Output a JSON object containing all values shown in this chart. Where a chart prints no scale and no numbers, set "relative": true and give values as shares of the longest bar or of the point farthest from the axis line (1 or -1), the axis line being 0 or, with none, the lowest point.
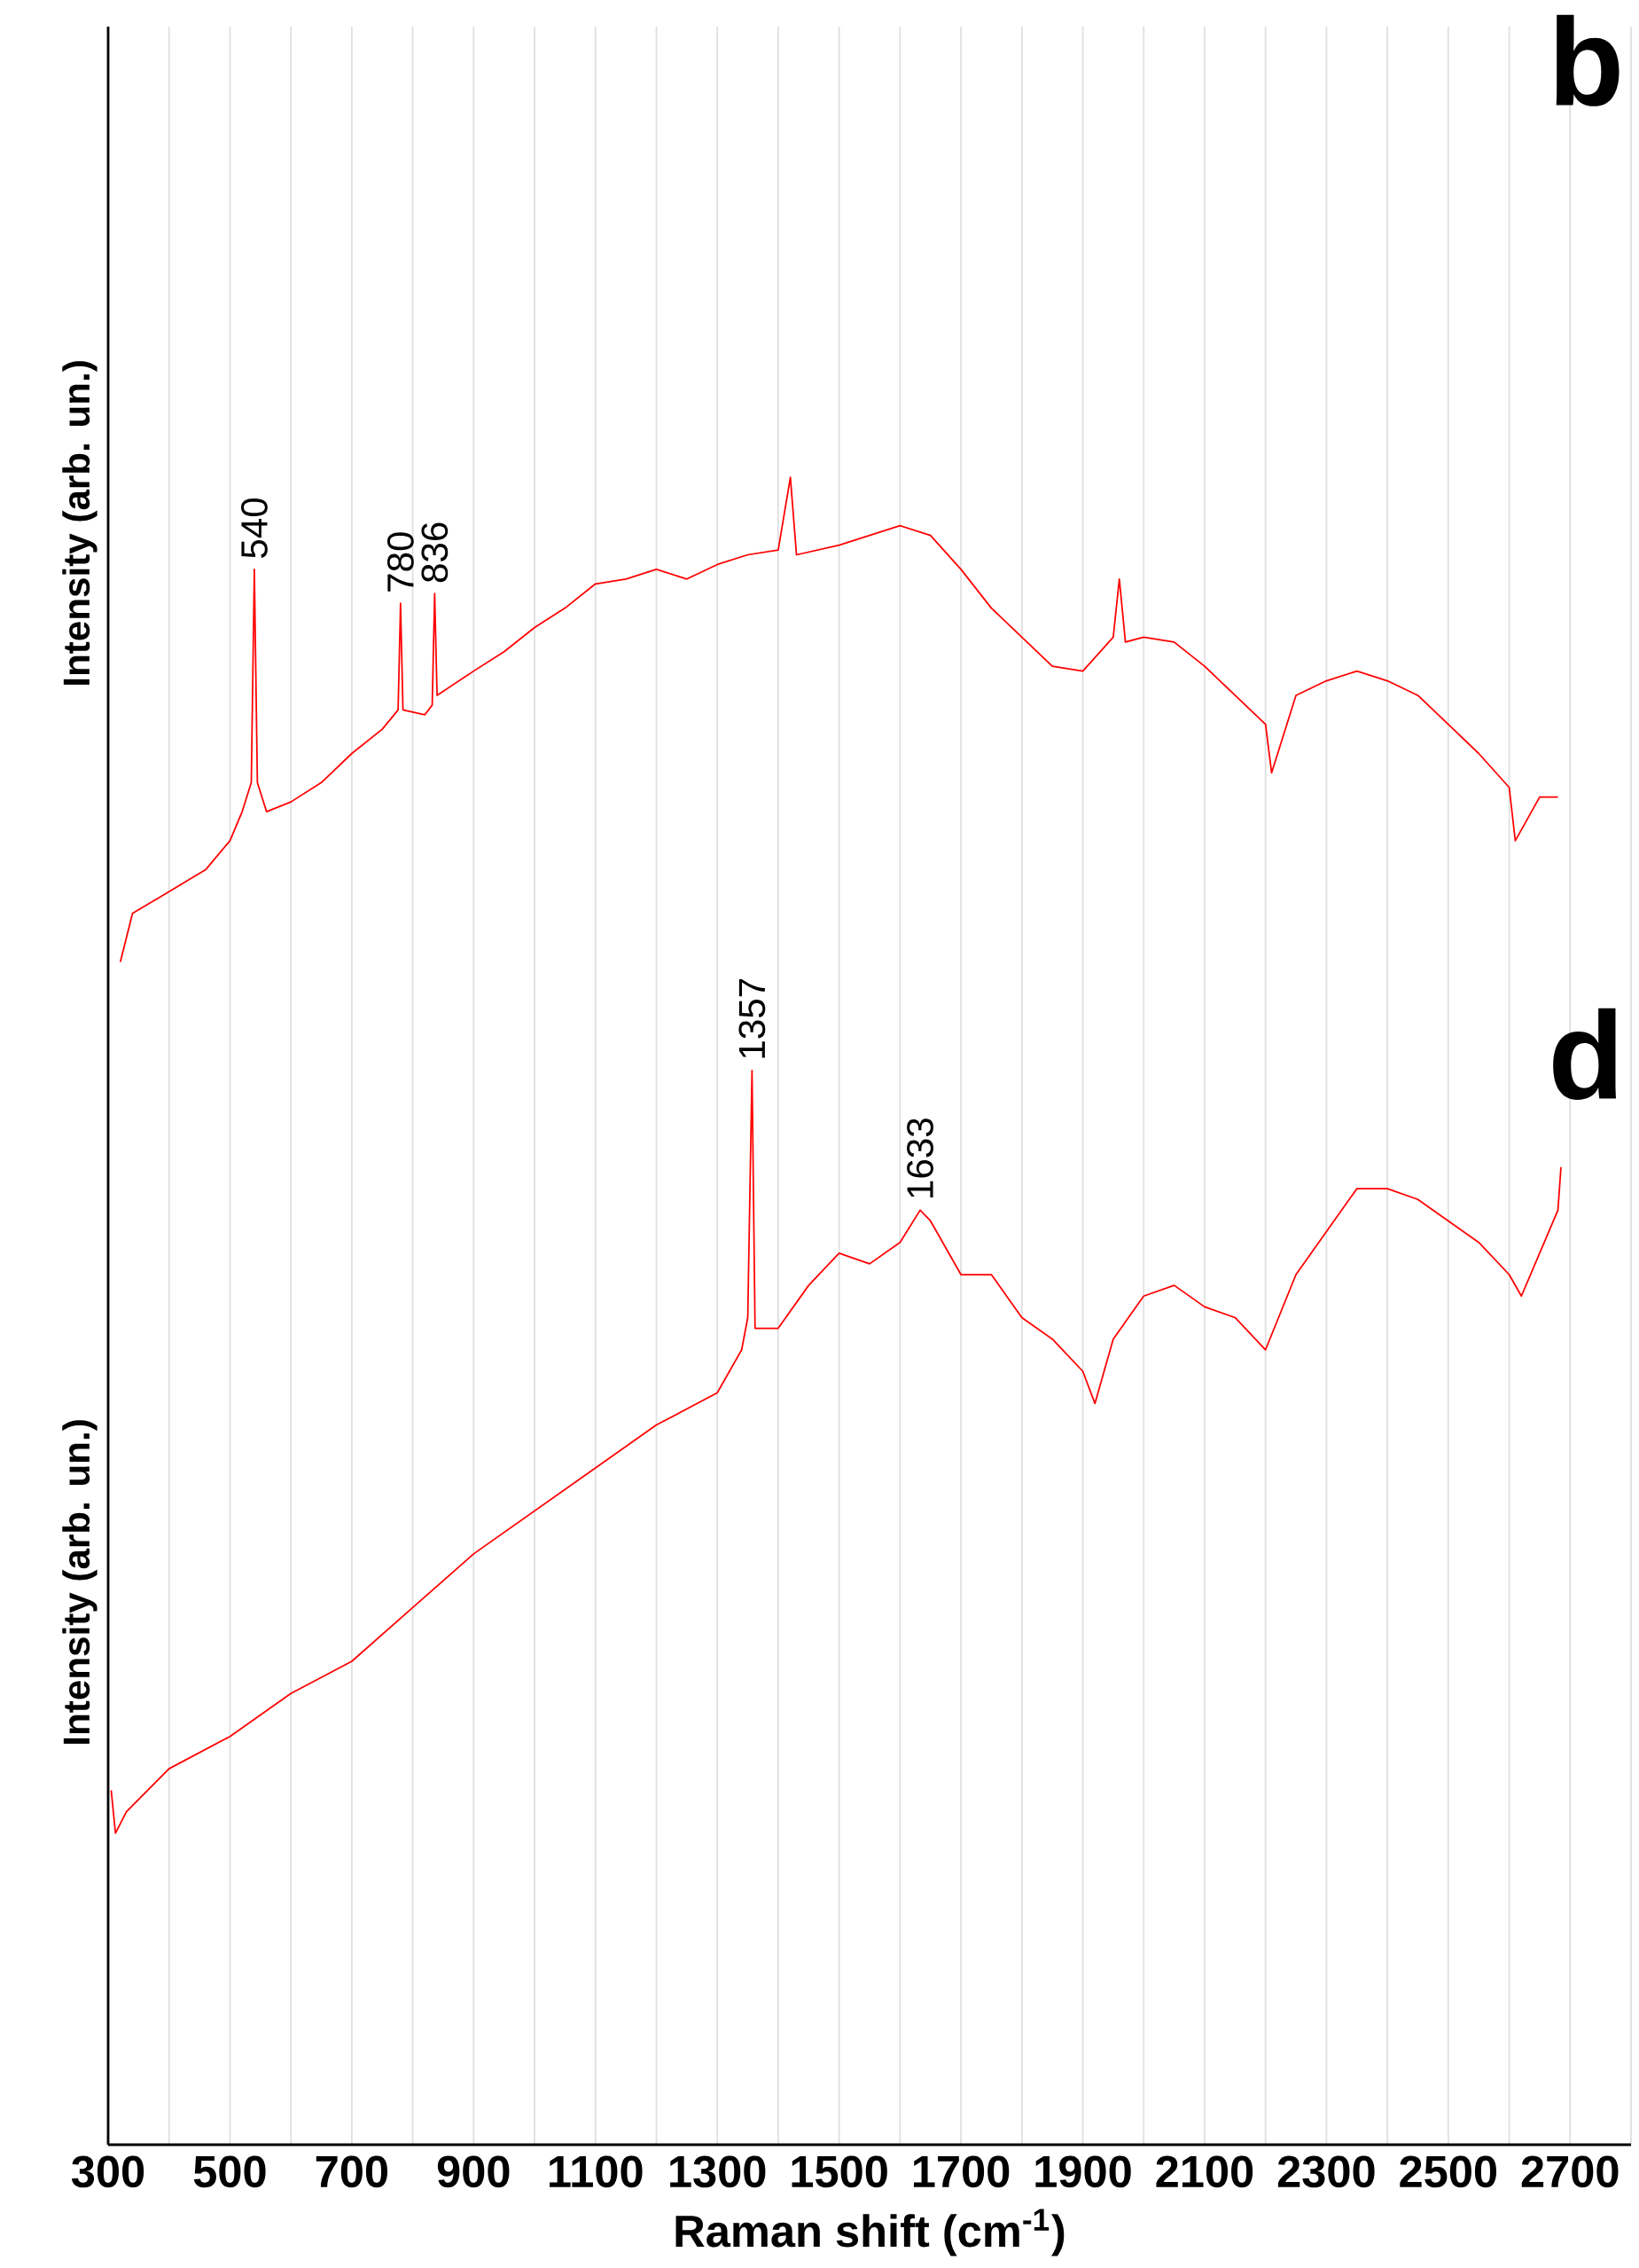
{
  "chart_data": [
    {
      "type": "line",
      "title": "b",
      "ylabel": "Intensity (arb. un.)",
      "relative": true,
      "xlim": [
        300,
        2800
      ],
      "xticks": [
        300,
        {
          "value": 400,
          "label": null
        },
        500,
        {
          "value": 600,
          "label": null
        },
        700,
        {
          "value": 800,
          "label": null
        },
        900,
        {
          "value": 1000,
          "label": null
        },
        1100,
        {
          "value": 1200,
          "label": null
        },
        1300,
        {
          "value": 1400,
          "label": null
        },
        1500,
        {
          "value": 1600,
          "label": null
        },
        1700,
        {
          "value": 1800,
          "label": null
        },
        1900,
        {
          "value": 2000,
          "label": null
        },
        2100,
        {
          "value": 2200,
          "label": null
        },
        2300,
        {
          "value": 2400,
          "label": null
        },
        2500,
        {
          "value": 2600,
          "label": null
        },
        2700,
        {
          "value": 2800,
          "label": null
        }
      ],
      "tick_labels": false,
      "grid": "x",
      "line_style": "solid",
      "series": [
        {
          "color": "#ff0000",
          "x": [
            320,
            340,
            380,
            420,
            460,
            500,
            520,
            535,
            540,
            545,
            560,
            600,
            650,
            700,
            750,
            776,
            780,
            784,
            820,
            832,
            836,
            840,
            900,
            950,
            1000,
            1050,
            1100,
            1150,
            1200,
            1250,
            1300,
            1350,
            1400,
            1420,
            1430,
            1500,
            1550,
            1600,
            1650,
            1700,
            1750,
            1800,
            1850,
            1900,
            1950,
            1960,
            1970,
            2000,
            2050,
            2100,
            2150,
            2200,
            2210,
            2250,
            2300,
            2350,
            2400,
            2450,
            2500,
            2550,
            2600,
            2610,
            2650,
            2680
          ],
          "values": [
            0,
            0.1,
            0.13,
            0.16,
            0.19,
            0.25,
            0.31,
            0.37,
            0.81,
            0.37,
            0.31,
            0.33,
            0.37,
            0.43,
            0.48,
            0.52,
            0.74,
            0.52,
            0.51,
            0.53,
            0.76,
            0.55,
            0.6,
            0.64,
            0.69,
            0.73,
            0.78,
            0.79,
            0.81,
            0.79,
            0.82,
            0.84,
            0.85,
            1,
            0.84,
            0.86,
            0.88,
            0.9,
            0.88,
            0.81,
            0.73,
            0.67,
            0.61,
            0.6,
            0.67,
            0.79,
            0.66,
            0.67,
            0.66,
            0.61,
            0.55,
            0.49,
            0.39,
            0.55,
            0.58,
            0.6,
            0.58,
            0.55,
            0.49,
            0.43,
            0.36,
            0.25,
            0.34,
            0.34
          ]
        }
      ],
      "annotations": [
        {
          "text": "540",
          "x": 540,
          "y": 0.81
        },
        {
          "text": "780",
          "x": 780,
          "y": 0.74
        },
        {
          "text": "836",
          "x": 836,
          "y": 0.76
        }
      ]
    },
    {
      "type": "line",
      "title": "d",
      "ylabel": "Intensity (arb. un.)",
      "xlabel": "Raman shift (cm$^{-1}$)",
      "relative": true,
      "xlim": [
        300,
        2800
      ],
      "xticks": [
        300,
        {
          "value": 400,
          "label": null
        },
        500,
        {
          "value": 600,
          "label": null
        },
        700,
        {
          "value": 800,
          "label": null
        },
        900,
        {
          "value": 1000,
          "label": null
        },
        1100,
        {
          "value": 1200,
          "label": null
        },
        1300,
        {
          "value": 1400,
          "label": null
        },
        1500,
        {
          "value": 1600,
          "label": null
        },
        1700,
        {
          "value": 1800,
          "label": null
        },
        1900,
        {
          "value": 2000,
          "label": null
        },
        2100,
        {
          "value": 2200,
          "label": null
        },
        2300,
        {
          "value": 2400,
          "label": null
        },
        2500,
        {
          "value": 2600,
          "label": null
        },
        2700,
        {
          "value": 2800,
          "label": null
        }
      ],
      "tick_labels": "x",
      "grid": "x",
      "line_style": "solid",
      "series": [
        {
          "color": "#ff0000",
          "x": [
            305,
            312,
            330,
            400,
            500,
            600,
            700,
            800,
            900,
            1000,
            1100,
            1200,
            1300,
            1340,
            1350,
            1357,
            1362,
            1400,
            1450,
            1500,
            1550,
            1600,
            1633,
            1650,
            1700,
            1750,
            1800,
            1850,
            1900,
            1920,
            1950,
            2000,
            2050,
            2100,
            2150,
            2200,
            2250,
            2300,
            2350,
            2400,
            2450,
            2500,
            2550,
            2600,
            2620,
            2650,
            2680,
            2685
          ],
          "values": [
            0.33,
            0.29,
            0.31,
            0.35,
            0.38,
            0.42,
            0.45,
            0.5,
            0.55,
            0.59,
            0.63,
            0.67,
            0.7,
            0.74,
            0.77,
            1,
            0.76,
            0.76,
            0.8,
            0.83,
            0.82,
            0.84,
            0.87,
            0.86,
            0.81,
            0.81,
            0.77,
            0.75,
            0.72,
            0.69,
            0.75,
            0.79,
            0.8,
            0.78,
            0.77,
            0.74,
            0.81,
            0.85,
            0.89,
            0.89,
            0.88,
            0.86,
            0.84,
            0.81,
            0.79,
            0.83,
            0.87,
            0.91
          ]
        }
      ],
      "annotations": [
        {
          "text": "1357",
          "x": 1357,
          "y": 1
        },
        {
          "text": "1633",
          "x": 1633,
          "y": 0.87
        }
      ]
    }
  ]
}
